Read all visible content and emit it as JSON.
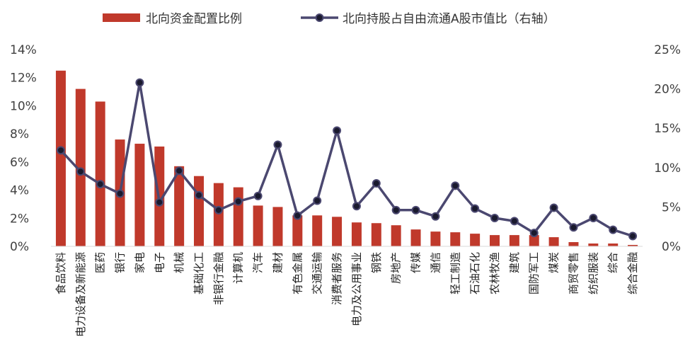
{
  "chart_data": {
    "type": "bar",
    "legend": {
      "placement": "top",
      "bar_series_name": "北向资金配置比例",
      "line_series_name": "北向持股占自由流通A股市值比（右轴）"
    },
    "categories": [
      "食品饮料",
      "电力设备及新能源",
      "医药",
      "银行",
      "家电",
      "电子",
      "机械",
      "基础化工",
      "非银行金融",
      "计算机",
      "汽车",
      "建材",
      "有色金属",
      "交通运输",
      "消费者服务",
      "电力及公用事业",
      "钢铁",
      "房地产",
      "传媒",
      "通信",
      "轻工制造",
      "石油石化",
      "农林牧渔",
      "建筑",
      "国防军工",
      "煤炭",
      "商贸零售",
      "纺织服装",
      "综合",
      "综合金融"
    ],
    "series": [
      {
        "name": "北向资金配置比例",
        "type": "bar",
        "axis": "left",
        "color": "#C0392B",
        "values": [
          12.5,
          11.2,
          10.3,
          7.6,
          7.3,
          7.1,
          5.7,
          5.0,
          4.5,
          4.2,
          2.9,
          2.8,
          2.2,
          2.2,
          2.1,
          1.7,
          1.65,
          1.5,
          1.2,
          1.05,
          1.0,
          0.9,
          0.8,
          0.8,
          0.8,
          0.65,
          0.3,
          0.2,
          0.2,
          0.1
        ]
      },
      {
        "name": "北向持股占自由流通A股市值比（右轴）",
        "type": "line",
        "axis": "right",
        "color": "#4B4870",
        "values": [
          12.2,
          9.5,
          7.9,
          6.7,
          20.8,
          5.6,
          9.6,
          6.5,
          4.6,
          5.7,
          6.4,
          12.9,
          3.9,
          5.8,
          14.7,
          5.1,
          8.0,
          4.6,
          4.6,
          3.8,
          7.7,
          4.8,
          3.6,
          3.2,
          1.7,
          4.9,
          2.4,
          3.6,
          2.1,
          1.3
        ]
      }
    ],
    "left_axis": {
      "ylim": [
        0,
        14
      ],
      "ticks": [
        "0%",
        "2%",
        "4%",
        "6%",
        "8%",
        "10%",
        "12%",
        "14%"
      ]
    },
    "right_axis": {
      "ylim": [
        0,
        25
      ],
      "ticks": [
        "0%",
        "5%",
        "10%",
        "15%",
        "20%",
        "25%"
      ]
    },
    "grid": false
  }
}
